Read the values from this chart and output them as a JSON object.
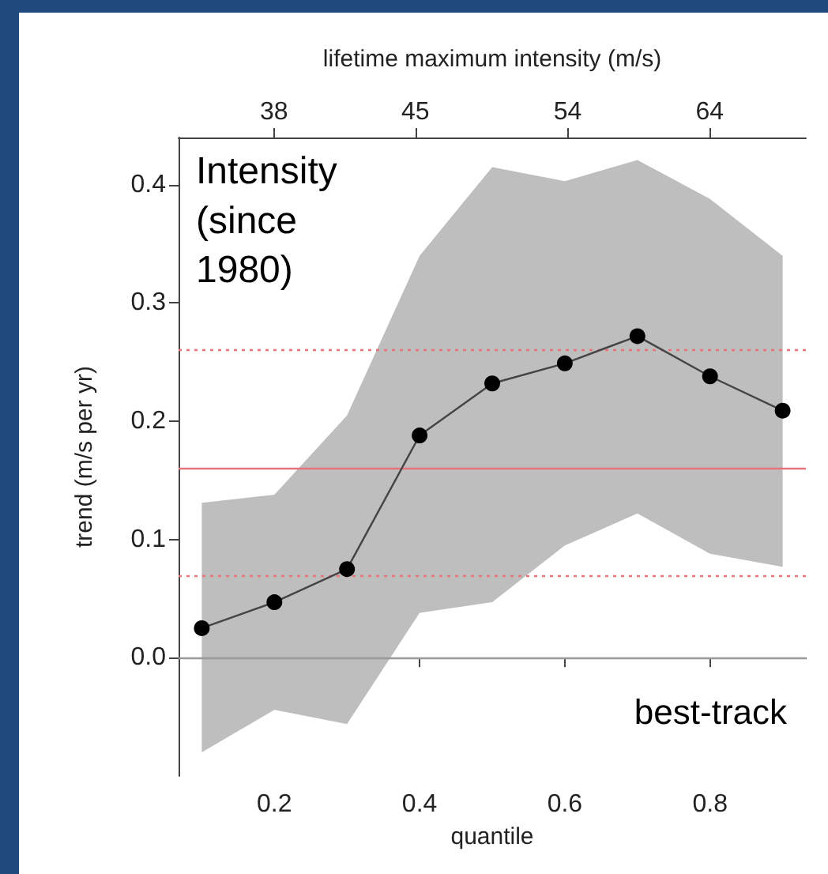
{
  "chart_data": {
    "type": "line",
    "x2label": "lifetime maximum intensity (m/s)",
    "xlabel": "quantile",
    "ylabel": "trend (m/s per yr)",
    "annotations": [
      "Intensity (since 1980)",
      "best-track"
    ],
    "x": [
      0.1,
      0.2,
      0.3,
      0.4,
      0.5,
      0.6,
      0.7,
      0.8,
      0.9
    ],
    "series": [
      {
        "color": "#000000",
        "values": [
          0.025,
          0.047,
          0.075,
          0.188,
          0.232,
          0.249,
          0.272,
          0.238,
          0.209
        ],
        "lower": [
          -0.08,
          -0.044,
          -0.056,
          0.038,
          0.047,
          0.095,
          0.122,
          0.088,
          0.077
        ],
        "upper": [
          0.131,
          0.138,
          0.205,
          0.34,
          0.415,
          0.403,
          0.421,
          0.388,
          0.34
        ]
      }
    ],
    "log": "x2",
    "marker": "circle",
    "line_style": "solid",
    "xlim": [
      0.068,
      0.932
    ],
    "xticks": [
      0.2,
      0.4,
      0.6,
      0.8
    ],
    "x2lim": [
      33.9,
      71.8
    ],
    "x2ticks": [
      38,
      45,
      54,
      64
    ],
    "ylim": [
      -0.1,
      0.44
    ],
    "yticks": [
      {
        "value": 0,
        "label": "0.0"
      },
      0.1,
      0.2,
      0.3,
      0.4
    ],
    "ref_lines": [
      {
        "axis": "y",
        "value": 0,
        "color": "#999999",
        "line_style": "solid"
      },
      {
        "axis": "y",
        "value": 0.16,
        "color": "#e8737a",
        "line_style": "solid"
      },
      {
        "axis": "y",
        "value": 0.069,
        "color": "#e8737a",
        "line_style": "dotted"
      },
      {
        "axis": "y",
        "value": 0.259,
        "color": "#e8737a",
        "line_style": "dotted"
      }
    ],
    "grid": false
  }
}
